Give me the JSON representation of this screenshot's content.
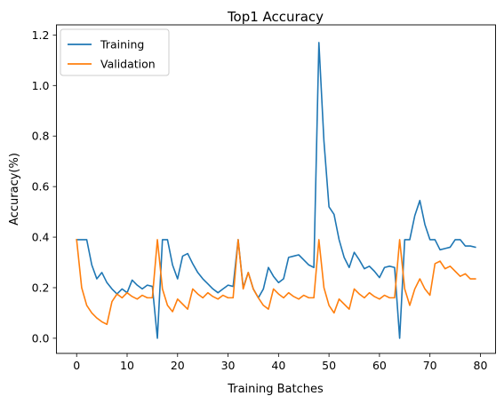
{
  "chart_data": {
    "type": "line",
    "title": "Top1 Accuracy",
    "xlabel": "Training Batches",
    "ylabel": "Accuracy(%)",
    "xlim": [
      -4,
      83
    ],
    "ylim": [
      -0.06,
      1.24
    ],
    "xticks": [
      0,
      10,
      20,
      30,
      40,
      50,
      60,
      70,
      80
    ],
    "yticks": [
      0.0,
      0.2,
      0.4,
      0.6,
      0.8,
      1.0,
      1.2
    ],
    "ytick_labels": [
      "0.0",
      "0.2",
      "0.4",
      "0.6",
      "0.8",
      "1.0",
      "1.2"
    ],
    "grid": false,
    "legend_position": "upper-left",
    "series": [
      {
        "name": "Training",
        "color": "#1f77b4",
        "x": [
          0,
          1,
          2,
          3,
          4,
          5,
          6,
          7,
          8,
          9,
          10,
          11,
          12,
          13,
          14,
          15,
          16,
          17,
          18,
          19,
          20,
          21,
          22,
          23,
          24,
          25,
          26,
          27,
          28,
          29,
          30,
          31,
          32,
          33,
          34,
          35,
          36,
          37,
          38,
          39,
          40,
          41,
          42,
          43,
          44,
          45,
          46,
          47,
          48,
          49,
          50,
          51,
          52,
          53,
          54,
          55,
          56,
          57,
          58,
          59,
          60,
          61,
          62,
          63,
          64,
          65,
          66,
          67,
          68,
          69,
          70,
          71,
          72,
          73,
          74,
          75,
          76,
          77,
          78,
          79
        ],
        "values": [
          0.39,
          0.39,
          0.39,
          0.29,
          0.235,
          0.26,
          0.22,
          0.195,
          0.175,
          0.195,
          0.18,
          0.23,
          0.21,
          0.195,
          0.21,
          0.205,
          0.0,
          0.39,
          0.39,
          0.29,
          0.235,
          0.325,
          0.335,
          0.295,
          0.26,
          0.235,
          0.215,
          0.195,
          0.18,
          0.195,
          0.21,
          0.205,
          0.39,
          0.2,
          0.26,
          0.195,
          0.16,
          0.195,
          0.28,
          0.245,
          0.22,
          0.235,
          0.32,
          0.325,
          0.33,
          0.31,
          0.29,
          0.28,
          1.17,
          0.78,
          0.52,
          0.49,
          0.39,
          0.32,
          0.28,
          0.34,
          0.31,
          0.275,
          0.285,
          0.265,
          0.24,
          0.28,
          0.285,
          0.28,
          0.0,
          0.39,
          0.39,
          0.485,
          0.545,
          0.45,
          0.39,
          0.39,
          0.35,
          0.355,
          0.36,
          0.39,
          0.39,
          0.365,
          0.365,
          0.36
        ]
      },
      {
        "name": "Validation",
        "color": "#ff7f0e",
        "x": [
          0,
          1,
          2,
          3,
          4,
          5,
          6,
          7,
          8,
          9,
          10,
          11,
          12,
          13,
          14,
          15,
          16,
          17,
          18,
          19,
          20,
          21,
          22,
          23,
          24,
          25,
          26,
          27,
          28,
          29,
          30,
          31,
          32,
          33,
          34,
          35,
          36,
          37,
          38,
          39,
          40,
          41,
          42,
          43,
          44,
          45,
          46,
          47,
          48,
          49,
          50,
          51,
          52,
          53,
          54,
          55,
          56,
          57,
          58,
          59,
          60,
          61,
          62,
          63,
          64,
          65,
          66,
          67,
          68,
          69,
          70,
          71,
          72,
          73,
          74,
          75,
          76,
          77,
          78,
          79
        ],
        "values": [
          0.39,
          0.2,
          0.13,
          0.1,
          0.08,
          0.065,
          0.055,
          0.145,
          0.175,
          0.16,
          0.18,
          0.165,
          0.155,
          0.17,
          0.16,
          0.16,
          0.39,
          0.195,
          0.13,
          0.105,
          0.155,
          0.135,
          0.115,
          0.195,
          0.175,
          0.16,
          0.18,
          0.165,
          0.155,
          0.17,
          0.16,
          0.16,
          0.39,
          0.195,
          0.26,
          0.195,
          0.16,
          0.13,
          0.115,
          0.195,
          0.175,
          0.16,
          0.18,
          0.165,
          0.155,
          0.17,
          0.16,
          0.16,
          0.39,
          0.2,
          0.13,
          0.1,
          0.155,
          0.135,
          0.115,
          0.195,
          0.175,
          0.16,
          0.18,
          0.165,
          0.155,
          0.17,
          0.16,
          0.16,
          0.39,
          0.195,
          0.13,
          0.195,
          0.235,
          0.195,
          0.17,
          0.295,
          0.305,
          0.275,
          0.285,
          0.265,
          0.245,
          0.255,
          0.235,
          0.235
        ]
      }
    ]
  }
}
